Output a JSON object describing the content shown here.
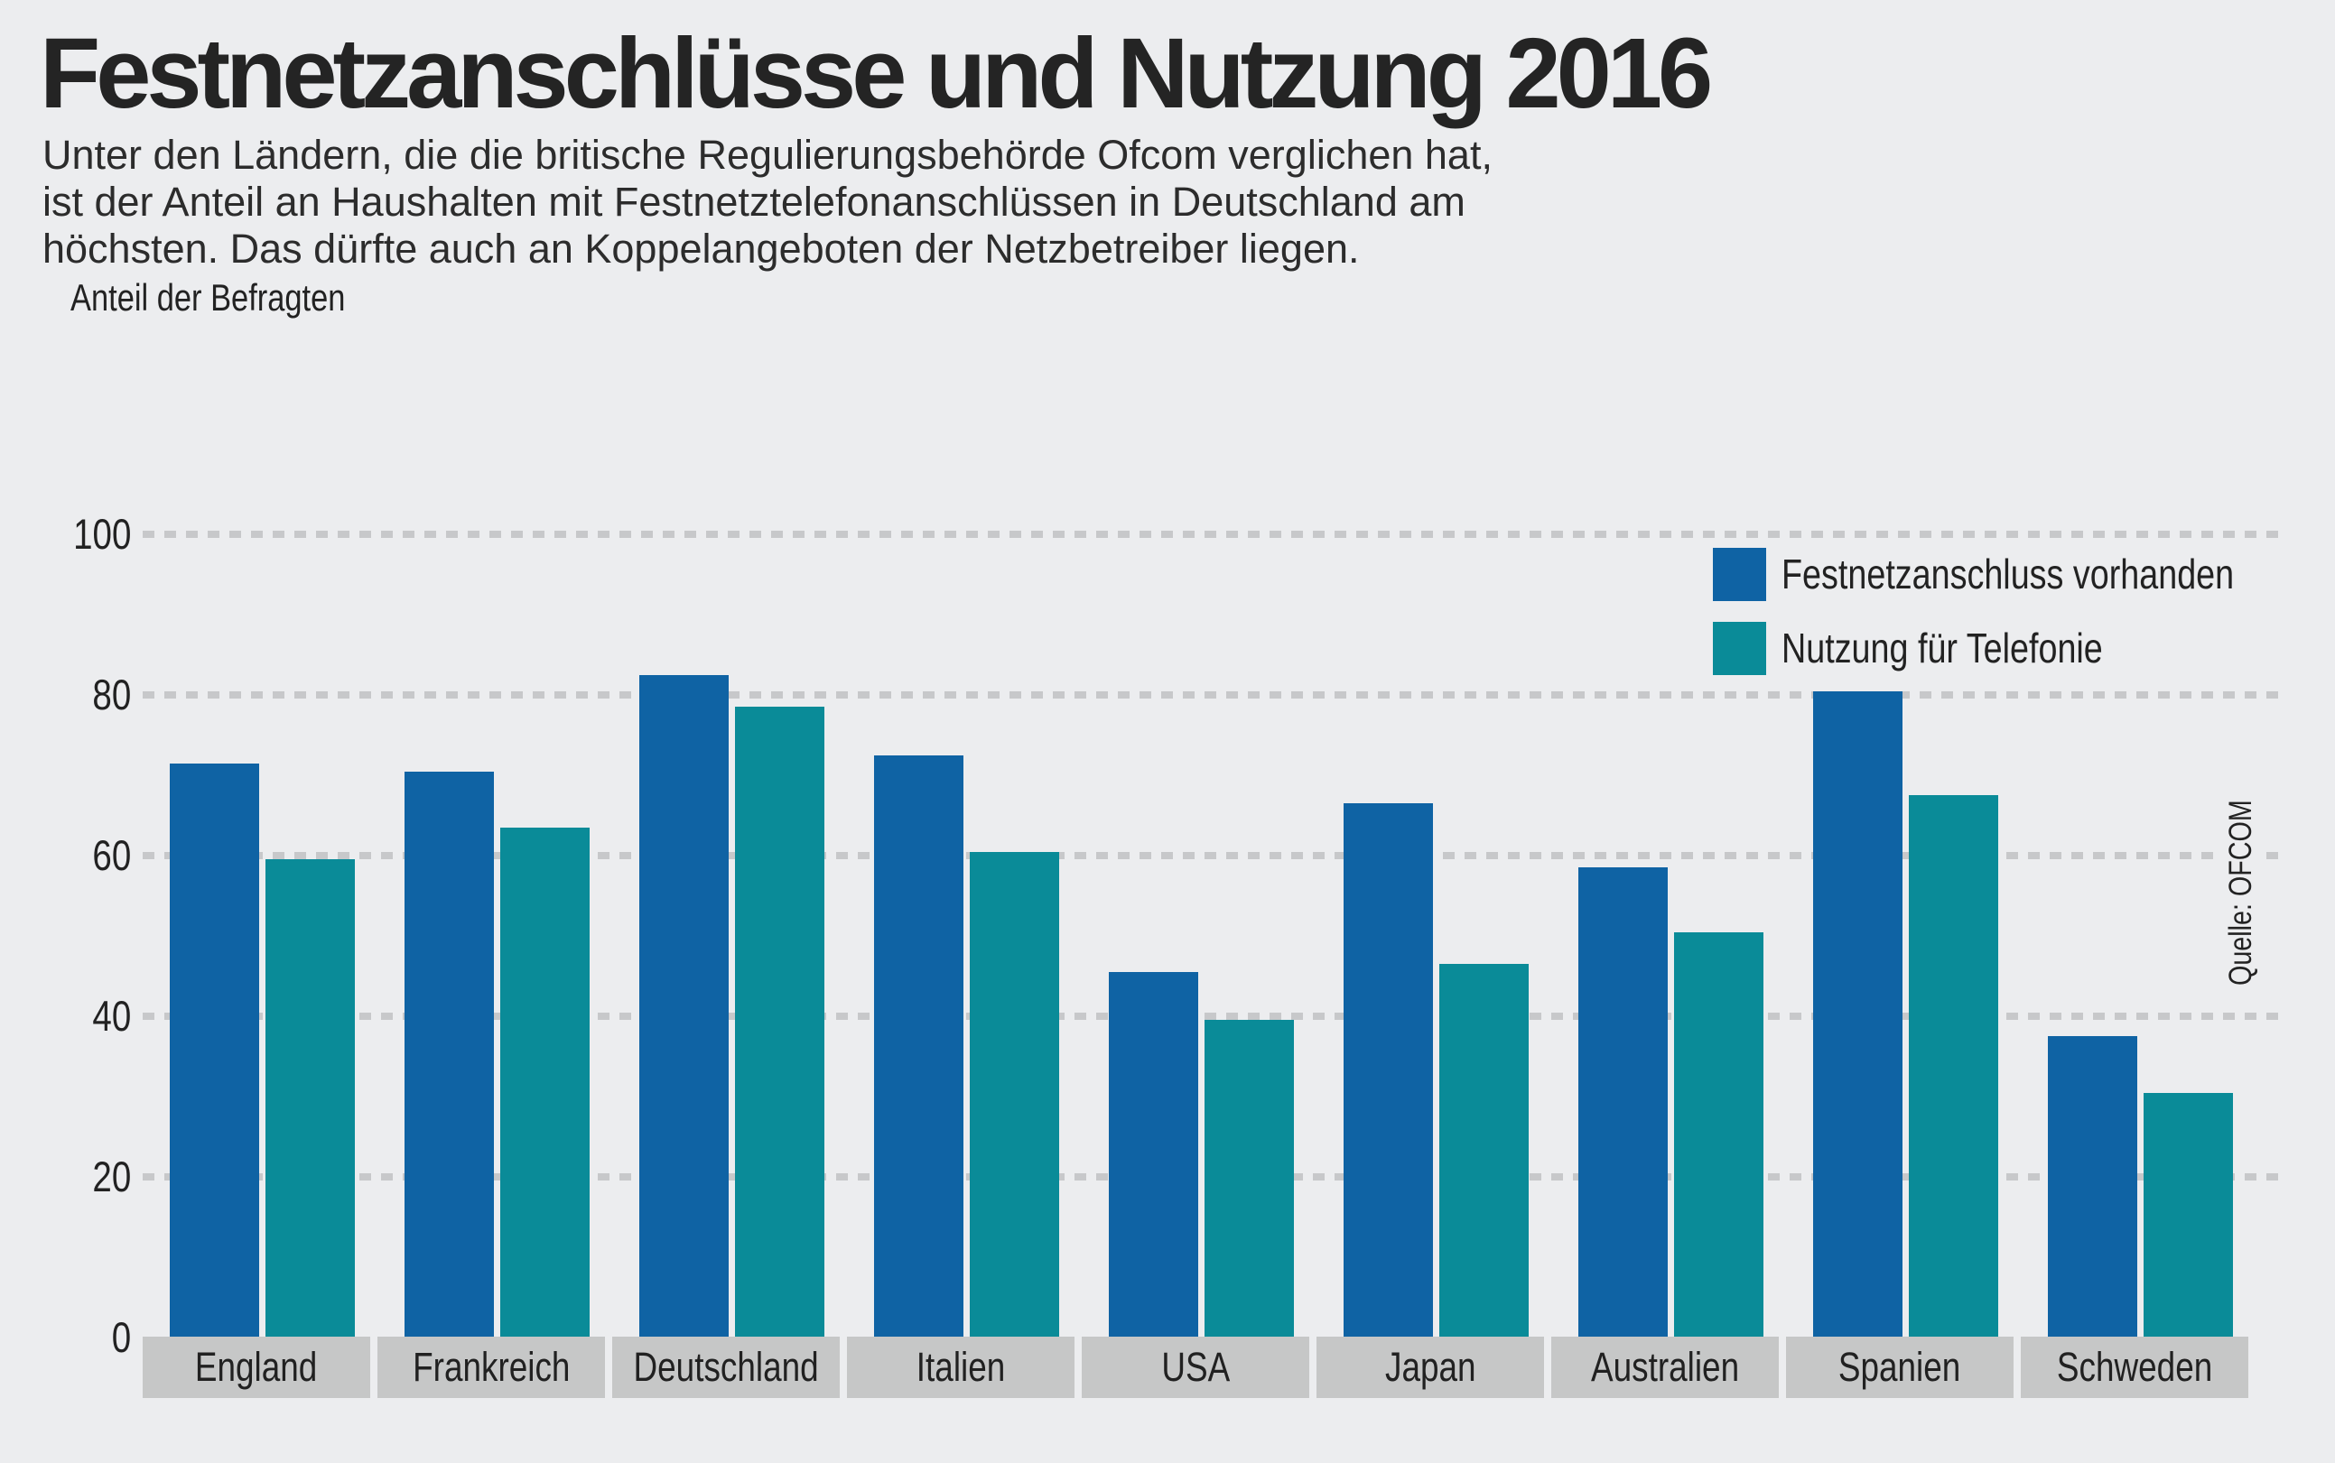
{
  "header": {
    "title": "Festnetzanschlüsse und Nutzung 2016",
    "subtitle_lines": [
      "Unter den Ländern, die die britische Regulierungsbehörde Ofcom verglichen hat,",
      "ist der Anteil an Haushalten mit Festnetztelefonanschlüssen in Deutschland am",
      "höchsten. Das dürfte auch an Koppelangeboten der Netzbetreiber liegen."
    ]
  },
  "chart_data": {
    "type": "bar",
    "title": "Festnetzanschlüsse und Nutzung 2016",
    "ylabel": "Anteil der Befragten",
    "xlabel": "",
    "ylim": [
      0,
      100
    ],
    "y_ticks": [
      "100",
      "80",
      "60",
      "40",
      "20",
      "0"
    ],
    "grid": "horizontal dashed",
    "legend_position": "top-right",
    "source": "Quelle: OFCOM",
    "categories": [
      "England",
      "Frankreich",
      "Deutschland",
      "Italien",
      "USA",
      "Japan",
      "Australien",
      "Spanien",
      "Schweden"
    ],
    "series": [
      {
        "name": "Festnetzanschluss vorhanden",
        "color": "#0f63a4",
        "values": [
          71.5,
          70.5,
          82.5,
          72.5,
          45.5,
          66.5,
          58.5,
          80.5,
          37.5
        ]
      },
      {
        "name": "Nutzung für Telefonie",
        "color": "#0a8b98",
        "values": [
          59.5,
          63.5,
          78.5,
          60.5,
          39.5,
          46.5,
          50.5,
          67.5,
          30.5
        ]
      }
    ]
  },
  "colors": {
    "background": "#ecedef",
    "bar_blue": "#0f63a4",
    "bar_teal": "#0a8b98",
    "category_box": "#c6c7c7",
    "gridline": "#c7c8ca",
    "text": "#242424"
  }
}
